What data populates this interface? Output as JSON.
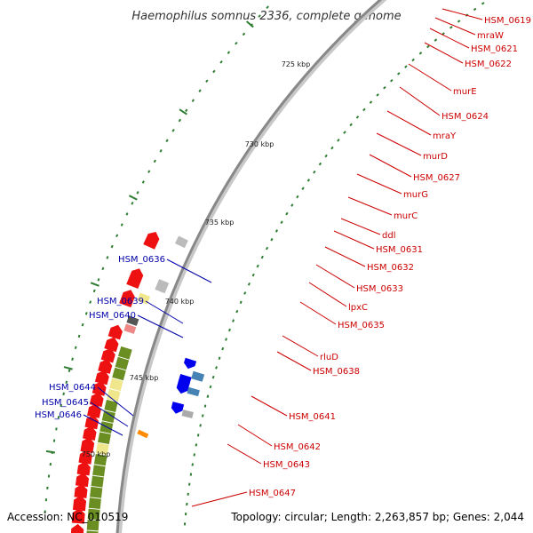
{
  "title": "Haemophilus somnus 2336, complete genome",
  "accession": "Accession: NC_010519",
  "topology": "Topology: circular; Length: 2,263,857 bp; Genes: 2,044",
  "colors": {
    "forward_gene": "#ee1111",
    "reverse_gene": "#0000ee",
    "cog_green": "#6b8e23",
    "cog_yellow": "#f0e68c",
    "backbone": "#888888",
    "label_forward": "#cc0000",
    "label_reverse": "#0000aa"
  },
  "scale_marks": [
    "725 kbp",
    "730 kbp",
    "735 kbp",
    "740 kbp",
    "745 kbp",
    "750 kbp"
  ],
  "right_labels": [
    "HSM_0619",
    "mraW",
    "HSM_0621",
    "HSM_0622",
    "murE",
    "HSM_0624",
    "mraY",
    "murD",
    "HSM_0627",
    "murG",
    "murC",
    "ddl",
    "HSM_0631",
    "HSM_0632",
    "HSM_0633",
    "lpxC",
    "HSM_0635",
    "rluD",
    "HSM_0638",
    "HSM_0641",
    "HSM_0642",
    "HSM_0643",
    "HSM_0647"
  ],
  "left_labels": [
    "HSM_0636",
    "HSM_0639",
    "HSM_0640",
    "HSM_0644",
    "HSM_0645",
    "HSM_0646"
  ]
}
